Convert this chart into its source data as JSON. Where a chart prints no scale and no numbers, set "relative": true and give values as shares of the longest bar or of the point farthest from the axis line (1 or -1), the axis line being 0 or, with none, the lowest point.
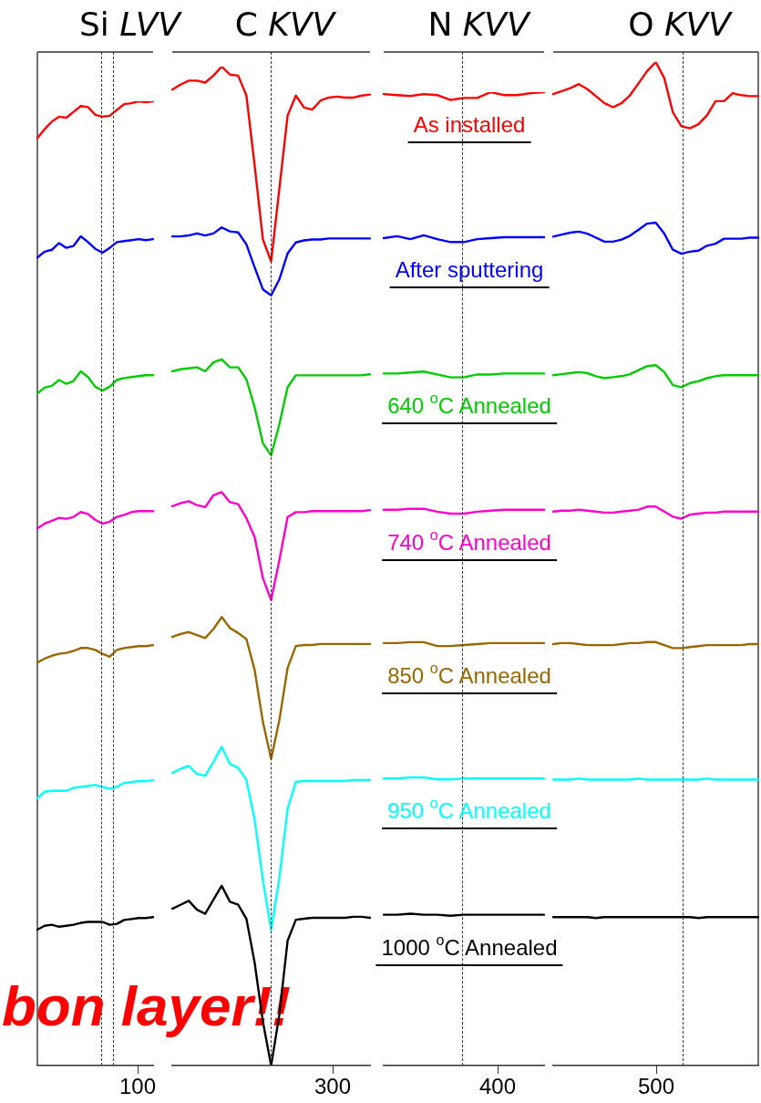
{
  "chart_data": [
    {
      "type": "line",
      "title": "Si LVV",
      "relative": true,
      "grid": false,
      "legend": false,
      "marker": "none",
      "line_style": "solid",
      "annotations": [
        "bon layer!!",
        "100"
      ],
      "categories": [
        null,
        null,
        null,
        null,
        null,
        null,
        null,
        null,
        null,
        null,
        null,
        null,
        null,
        null,
        null,
        null,
        null
      ],
      "series": [
        {
          "color": "#ff0000",
          "values": [
            0.962,
            0.971,
            0.979,
            0.984,
            0.983,
            0.989,
            0.995,
            0.994,
            0.986,
            0.984,
            0.985,
            0.991,
            0.997,
            0.998,
            1,
            0.999,
            1
          ]
        },
        {
          "color": "#0000ff",
          "values": [
            0.838,
            0.844,
            0.846,
            0.853,
            0.848,
            0.85,
            0.86,
            0.854,
            0.847,
            0.843,
            0.848,
            0.854,
            0.855,
            0.856,
            0.857,
            0.856,
            0.857
          ]
        },
        {
          "color": "#00cc00",
          "values": [
            0.697,
            0.703,
            0.705,
            0.711,
            0.707,
            0.71,
            0.72,
            0.714,
            0.704,
            0.7,
            0.704,
            0.711,
            0.713,
            0.714,
            0.715,
            0.716,
            0.716
          ]
        },
        {
          "color": "#ff00cc",
          "values": [
            0.557,
            0.562,
            0.565,
            0.568,
            0.567,
            0.569,
            0.574,
            0.572,
            0.566,
            0.562,
            0.564,
            0.569,
            0.571,
            0.574,
            0.575,
            0.575,
            0.575
          ]
        },
        {
          "color": "#996600",
          "values": [
            0.418,
            0.422,
            0.425,
            0.427,
            0.428,
            0.43,
            0.433,
            0.433,
            0.431,
            0.427,
            0.424,
            0.431,
            0.433,
            0.434,
            0.435,
            0.435,
            0.436
          ]
        },
        {
          "color": "#00ffff",
          "values": [
            0.277,
            0.284,
            0.285,
            0.285,
            0.285,
            0.288,
            0.289,
            0.29,
            0.291,
            0.289,
            0.287,
            0.289,
            0.293,
            0.294,
            0.295,
            0.295,
            0.296
          ]
        },
        {
          "color": "#000000",
          "values": [
            0.141,
            0.145,
            0.146,
            0.144,
            0.145,
            0.146,
            0.148,
            0.149,
            0.149,
            0.149,
            0.146,
            0.147,
            0.151,
            0.152,
            0.153,
            0.153,
            0.154
          ]
        }
      ]
    },
    {
      "type": "line",
      "title": "C KVV",
      "relative": true,
      "grid": false,
      "legend": false,
      "marker": "none",
      "line_style": "solid",
      "annotations": [
        "300"
      ],
      "categories": [
        null,
        null,
        null,
        null,
        null,
        null,
        null,
        null,
        null,
        null,
        null,
        null,
        null,
        null,
        null,
        null,
        null,
        null,
        null,
        null,
        null,
        null,
        null,
        null,
        null
      ],
      "series": [
        {
          "color": "#ff0000",
          "values": [
            0.977,
            0.982,
            0.986,
            0.986,
            0.984,
            0.991,
            1,
            0.992,
            0.991,
            0.971,
            0.901,
            0.827,
            0.805,
            0.878,
            0.951,
            0.971,
            0.959,
            0.957,
            0.966,
            0.969,
            0.97,
            0.969,
            0.969,
            0.971,
            0.972
          ]
        },
        {
          "color": "#0000ff",
          "values": [
            0.83,
            0.83,
            0.831,
            0.833,
            0.831,
            0.833,
            0.839,
            0.835,
            0.834,
            0.822,
            0.799,
            0.777,
            0.771,
            0.787,
            0.813,
            0.824,
            0.826,
            0.827,
            0.827,
            0.828,
            0.828,
            0.828,
            0.828,
            0.828,
            0.828
          ]
        },
        {
          "color": "#00cc00",
          "values": [
            0.695,
            0.697,
            0.698,
            0.699,
            0.695,
            0.704,
            0.707,
            0.699,
            0.699,
            0.687,
            0.659,
            0.623,
            0.611,
            0.642,
            0.679,
            0.691,
            0.691,
            0.691,
            0.691,
            0.691,
            0.691,
            0.691,
            0.691,
            0.691,
            0.692
          ]
        },
        {
          "color": "#ff00cc",
          "values": [
            0.56,
            0.563,
            0.565,
            0.561,
            0.559,
            0.571,
            0.574,
            0.564,
            0.562,
            0.548,
            0.529,
            0.488,
            0.466,
            0.506,
            0.549,
            0.554,
            0.554,
            0.555,
            0.555,
            0.555,
            0.555,
            0.555,
            0.555,
            0.555,
            0.556
          ]
        },
        {
          "color": "#996600",
          "values": [
            0.429,
            0.432,
            0.434,
            0.431,
            0.428,
            0.437,
            0.449,
            0.438,
            0.433,
            0.427,
            0.396,
            0.344,
            0.307,
            0.346,
            0.398,
            0.42,
            0.421,
            0.421,
            0.422,
            0.422,
            0.422,
            0.422,
            0.422,
            0.422,
            0.422
          ]
        },
        {
          "color": "#00ffff",
          "values": [
            0.293,
            0.297,
            0.3,
            0.292,
            0.29,
            0.304,
            0.319,
            0.302,
            0.298,
            0.286,
            0.246,
            0.186,
            0.136,
            0.188,
            0.257,
            0.284,
            0.285,
            0.285,
            0.285,
            0.285,
            0.285,
            0.285,
            0.286,
            0.286,
            0.286
          ]
        },
        {
          "color": "#000000",
          "values": [
            0.157,
            0.161,
            0.165,
            0.156,
            0.152,
            0.166,
            0.18,
            0.164,
            0.161,
            0.147,
            0.103,
            0.044,
            0,
            0.051,
            0.125,
            0.146,
            0.147,
            0.148,
            0.148,
            0.148,
            0.148,
            0.148,
            0.149,
            0.149,
            0.148
          ]
        }
      ]
    },
    {
      "type": "line",
      "title": "N KVV",
      "relative": true,
      "grid": false,
      "legend": false,
      "marker": "none",
      "line_style": "solid",
      "annotations": [
        "400"
      ],
      "categories": [
        null,
        null,
        null,
        null,
        null,
        null,
        null,
        null,
        null,
        null,
        null,
        null,
        null
      ],
      "series": [
        {
          "name": "As installed",
          "color": "#ff0000",
          "values": [
            0.998,
            0.997,
            0.996,
            0.998,
            0.997,
            0.992,
            0.994,
            0.994,
            1,
            0.997,
            0.997,
            0.999,
            1
          ]
        },
        {
          "name": "After sputtering",
          "color": "#0000ff",
          "values": [
            0.85,
            0.852,
            0.849,
            0.853,
            0.849,
            0.846,
            0.846,
            0.849,
            0.85,
            0.851,
            0.851,
            0.851,
            0.851
          ]
        },
        {
          "name": "640 $^{o}$C Annealed",
          "color": "#00cc00",
          "values": [
            0.711,
            0.711,
            0.712,
            0.713,
            0.71,
            0.707,
            0.707,
            0.71,
            0.71,
            0.711,
            0.711,
            0.711,
            0.711
          ]
        },
        {
          "name": "740 $^{o}$C Annealed",
          "color": "#ff00cc",
          "values": [
            0.571,
            0.571,
            0.572,
            0.572,
            0.569,
            0.567,
            0.567,
            0.569,
            0.57,
            0.571,
            0.571,
            0.571,
            0.571
          ]
        },
        {
          "name": "850 $^{o}$C Annealed",
          "color": "#996600",
          "values": [
            0.434,
            0.434,
            0.435,
            0.435,
            0.431,
            0.431,
            0.432,
            0.433,
            0.434,
            0.434,
            0.434,
            0.434,
            0.434
          ]
        },
        {
          "name": "950 $^{o}$C Annealed",
          "color": "#00ffff",
          "values": [
            0.295,
            0.295,
            0.296,
            0.296,
            0.294,
            0.294,
            0.295,
            0.295,
            0.295,
            0.295,
            0.295,
            0.295,
            0.295
          ]
        },
        {
          "name": "1000 $^{o}$C Annealed",
          "color": "#000000",
          "values": [
            0.155,
            0.155,
            0.156,
            0.155,
            0.155,
            0.154,
            0.155,
            0.155,
            0.155,
            0.155,
            0.155,
            0.155,
            0.155
          ]
        }
      ]
    },
    {
      "type": "line",
      "title": "O KVV",
      "relative": true,
      "grid": false,
      "legend": false,
      "marker": "none",
      "line_style": "solid",
      "annotations": [
        "500"
      ],
      "categories": [
        null,
        null,
        null,
        null,
        null,
        null,
        null,
        null,
        null,
        null,
        null,
        null,
        null,
        null,
        null,
        null,
        null,
        null,
        null,
        null,
        null,
        null,
        null,
        null,
        null
      ],
      "series": [
        {
          "color": "#ff0000",
          "values": [
            0.968,
            0.971,
            0.974,
            0.978,
            0.973,
            0.966,
            0.959,
            0.955,
            0.959,
            0.967,
            0.979,
            0.991,
            1,
            0.984,
            0.95,
            0.936,
            0.934,
            0.938,
            0.947,
            0.961,
            0.961,
            0.969,
            0.967,
            0.966,
            0.966
          ]
        },
        {
          "color": "#0000ff",
          "values": [
            0.826,
            0.828,
            0.83,
            0.831,
            0.829,
            0.825,
            0.821,
            0.821,
            0.823,
            0.827,
            0.833,
            0.839,
            0.84,
            0.829,
            0.813,
            0.809,
            0.811,
            0.812,
            0.817,
            0.819,
            0.824,
            0.824,
            0.824,
            0.825,
            0.825
          ]
        },
        {
          "color": "#00cc00",
          "values": [
            0.688,
            0.689,
            0.69,
            0.691,
            0.69,
            0.687,
            0.685,
            0.686,
            0.687,
            0.689,
            0.693,
            0.697,
            0.698,
            0.691,
            0.678,
            0.676,
            0.68,
            0.682,
            0.685,
            0.687,
            0.688,
            0.688,
            0.688,
            0.688,
            0.688
          ]
        },
        {
          "color": "#ff00cc",
          "values": [
            0.552,
            0.553,
            0.553,
            0.554,
            0.553,
            0.552,
            0.551,
            0.551,
            0.552,
            0.553,
            0.554,
            0.557,
            0.557,
            0.552,
            0.547,
            0.545,
            0.549,
            0.55,
            0.551,
            0.551,
            0.552,
            0.552,
            0.552,
            0.552,
            0.552
          ]
        },
        {
          "color": "#996600",
          "values": [
            0.42,
            0.421,
            0.421,
            0.42,
            0.419,
            0.419,
            0.419,
            0.419,
            0.42,
            0.421,
            0.421,
            0.422,
            0.422,
            0.419,
            0.416,
            0.416,
            0.417,
            0.418,
            0.419,
            0.419,
            0.419,
            0.419,
            0.419,
            0.42,
            0.42
          ]
        },
        {
          "color": "#00ffff",
          "values": [
            0.285,
            0.285,
            0.285,
            0.286,
            0.285,
            0.285,
            0.285,
            0.285,
            0.285,
            0.285,
            0.286,
            0.285,
            0.285,
            0.285,
            0.285,
            0.285,
            0.285,
            0.285,
            0.286,
            0.285,
            0.285,
            0.285,
            0.285,
            0.285,
            0.285
          ]
        },
        {
          "color": "#000000",
          "values": [
            0.148,
            0.148,
            0.148,
            0.148,
            0.148,
            0.147,
            0.148,
            0.148,
            0.148,
            0.148,
            0.148,
            0.148,
            0.148,
            0.148,
            0.148,
            0.148,
            0.148,
            0.147,
            0.148,
            0.148,
            0.148,
            0.148,
            0.148,
            0.148,
            0.148
          ]
        }
      ]
    }
  ]
}
